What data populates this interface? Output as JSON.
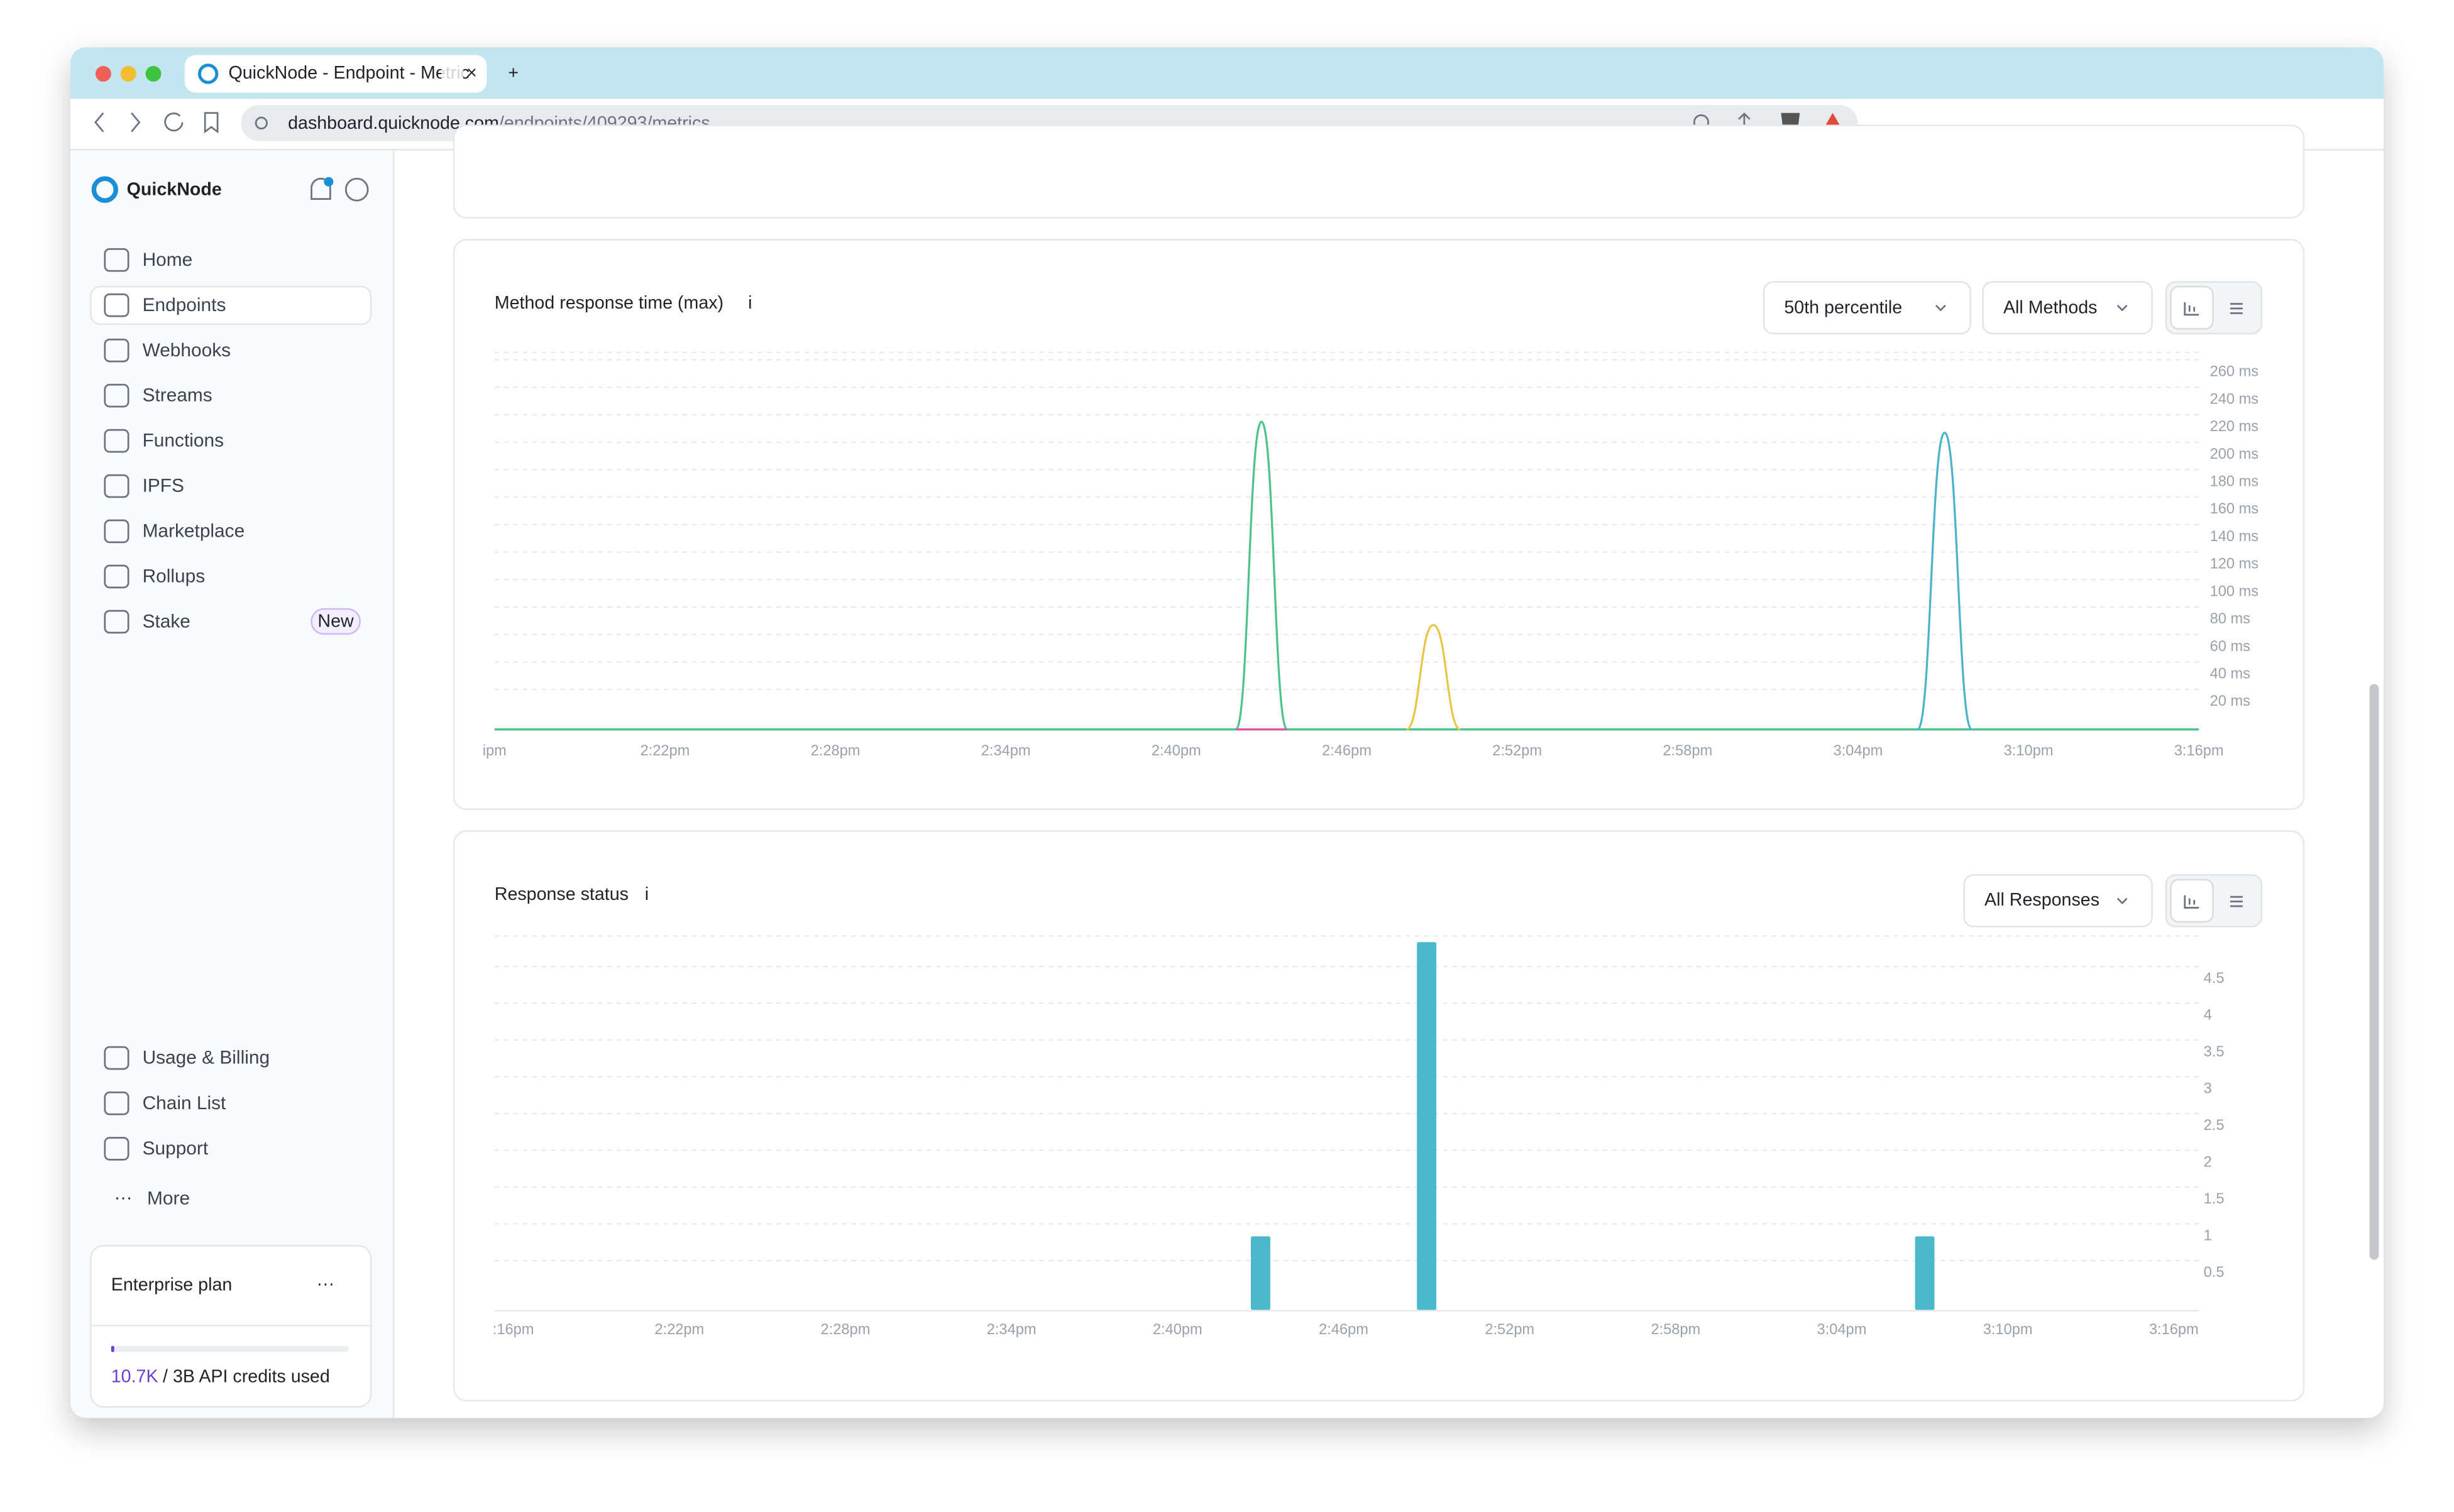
{
  "browser": {
    "tab_title": "QuickNode - Endpoint - Metric",
    "url_domain": "dashboard.quicknode.com",
    "url_path": "/endpoints/409293/metrics"
  },
  "sidebar": {
    "brand": "QuickNode",
    "nav": [
      "Home",
      "Endpoints",
      "Webhooks",
      "Streams",
      "Functions",
      "IPFS",
      "Marketplace",
      "Rollups",
      "Stake"
    ],
    "badge": "New",
    "bottom_nav": [
      "Usage & Billing",
      "Chain List",
      "Support"
    ],
    "more": "More",
    "plan": {
      "name": "Enterprise plan",
      "credits_used": "10.7K",
      "credits_text": "/ 3B API credits used"
    }
  },
  "charts": [
    {
      "title": "Method response time (max)",
      "info": "i",
      "controls": [
        "50th percentile",
        "All Methods"
      ],
      "chart_data": {
        "type": "line",
        "xlim": [
          856,
          916
        ],
        "xticks": [
          {
            "value": 856,
            "label": "ipm"
          },
          {
            "value": 862,
            "label": "2:22pm"
          },
          {
            "value": 868,
            "label": "2:28pm"
          },
          {
            "value": 874,
            "label": "2:34pm"
          },
          {
            "value": 880,
            "label": "2:40pm"
          },
          {
            "value": 886,
            "label": "2:46pm"
          },
          {
            "value": 892,
            "label": "2:52pm"
          },
          {
            "value": 898,
            "label": "2:58pm"
          },
          {
            "value": 904,
            "label": "3:04pm"
          },
          {
            "value": 910,
            "label": "3:10pm"
          },
          {
            "value": 916,
            "label": "3:16pm"
          }
        ],
        "ylim": [
          0,
          270
        ],
        "yticks": [
          {
            "value": 20,
            "label": "20 ms"
          },
          {
            "value": 40,
            "label": "40 ms"
          },
          {
            "value": 60,
            "label": "60 ms"
          },
          {
            "value": 80,
            "label": "80 ms"
          },
          {
            "value": 100,
            "label": "100 ms"
          },
          {
            "value": 120,
            "label": "120 ms"
          },
          {
            "value": 140,
            "label": "140 ms"
          },
          {
            "value": 160,
            "label": "160 ms"
          },
          {
            "value": 180,
            "label": "180 ms"
          },
          {
            "value": 200,
            "label": "200 ms"
          },
          {
            "value": 220,
            "label": "220 ms"
          },
          {
            "value": 240,
            "label": "240 ms"
          },
          {
            "value": 260,
            "label": "260 ms"
          }
        ],
        "grid": true,
        "series": [
          {
            "color": "#4cc38a",
            "x": [
              856,
              882.1,
              883,
              883.9,
              916
            ],
            "values": [
              0,
              0,
              224,
              0,
              0
            ]
          },
          {
            "color": "#e8c547",
            "x": [
              888.1,
              889.05,
              890
            ],
            "values": [
              0,
              76,
              0
            ]
          },
          {
            "color": "#4bb3c9",
            "x": [
              906.1,
              907.05,
              908
            ],
            "values": [
              0,
              216,
              0
            ]
          },
          {
            "color": "#e0559a",
            "x": [
              882.1,
              883.9
            ],
            "values": [
              0,
              0
            ]
          }
        ]
      }
    },
    {
      "title": "Response status",
      "info": "i",
      "controls": [
        "All Responses"
      ],
      "chart_data": {
        "type": "bar",
        "xlim": [
          856,
          916
        ],
        "xticks": [
          {
            "value": 856,
            "label": ":16pm"
          },
          {
            "value": 862,
            "label": "2:22pm"
          },
          {
            "value": 868,
            "label": "2:28pm"
          },
          {
            "value": 874,
            "label": "2:34pm"
          },
          {
            "value": 880,
            "label": "2:40pm"
          },
          {
            "value": 886,
            "label": "2:46pm"
          },
          {
            "value": 892,
            "label": "2:52pm"
          },
          {
            "value": 898,
            "label": "2:58pm"
          },
          {
            "value": 904,
            "label": "3:04pm"
          },
          {
            "value": 910,
            "label": "3:10pm"
          },
          {
            "value": 916,
            "label": "3:16pm"
          }
        ],
        "ylim": [
          0,
          5
        ],
        "yticks": [
          0.5,
          1,
          1.5,
          2,
          2.5,
          3,
          3.5,
          4,
          4.5
        ],
        "grid": true,
        "color": "#4bb8cc",
        "x": [
          883,
          889,
          907
        ],
        "values": [
          1,
          5,
          1
        ]
      }
    }
  ]
}
